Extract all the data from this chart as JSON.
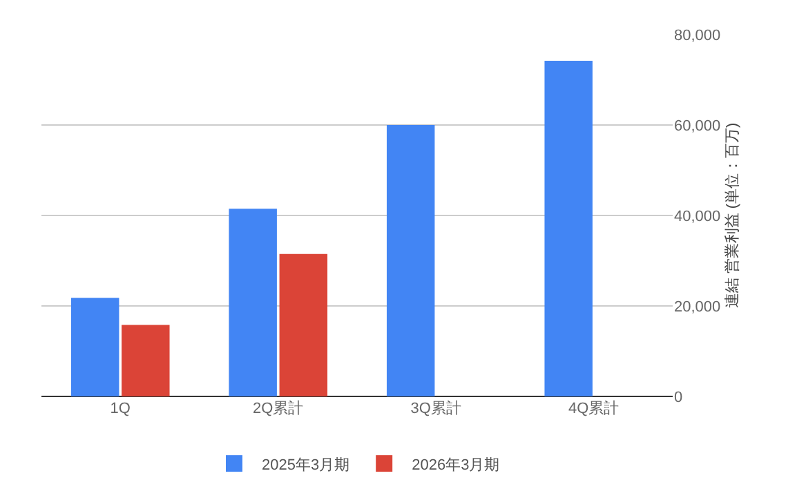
{
  "chart_data": {
    "type": "bar",
    "categories": [
      "1Q",
      "2Q累計",
      "3Q累計",
      "4Q累計"
    ],
    "series": [
      {
        "name": "2025年3月期",
        "color": "#4285f4",
        "values": [
          21800,
          41500,
          60000,
          74200
        ]
      },
      {
        "name": "2026年3月期",
        "color": "#db4437",
        "values": [
          15800,
          31500,
          null,
          null
        ]
      }
    ],
    "ylabel": "連結 営業利益 (単位：百万)",
    "ylim": [
      0,
      80000
    ],
    "yticks": [
      {
        "value": 0,
        "label": "0"
      },
      {
        "value": 20000,
        "label": "20,000"
      },
      {
        "value": 40000,
        "label": "40,000"
      },
      {
        "value": 60000,
        "label": "60,000"
      },
      {
        "value": 80000,
        "label": "80,000"
      }
    ],
    "grid": "y",
    "legend": "bottom"
  }
}
